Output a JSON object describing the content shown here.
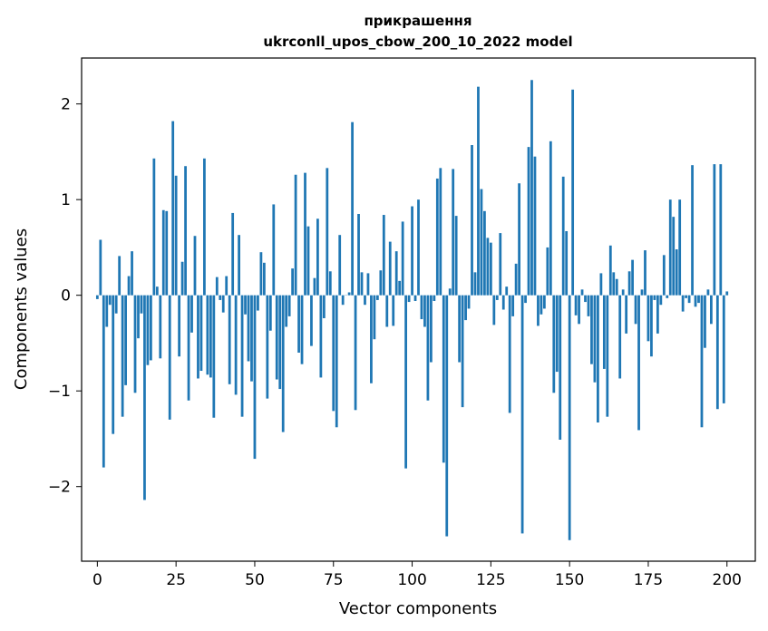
{
  "chart_data": {
    "type": "bar",
    "title": "прикрашення",
    "subtitle": "ukrconll_upos_cbow_200_10_2022 model",
    "xlabel": "Vector components",
    "ylabel": "Components values",
    "xlim": [
      -5,
      209
    ],
    "ylim": [
      -2.78,
      2.48
    ],
    "xticks": [
      0,
      25,
      50,
      75,
      100,
      125,
      150,
      175,
      200
    ],
    "yticks": [
      -2,
      -1,
      0,
      1,
      2
    ],
    "ytick_labels": [
      "−2",
      "−1",
      "0",
      "1",
      "2"
    ],
    "bar_color": "#1f77b4",
    "values": [
      -0.04,
      0.58,
      -1.8,
      -0.33,
      -0.1,
      -1.45,
      -0.19,
      0.41,
      -1.27,
      -0.94,
      0.2,
      0.46,
      -1.02,
      -0.45,
      -0.19,
      -2.14,
      -0.73,
      -0.68,
      1.43,
      0.09,
      -0.66,
      0.89,
      0.88,
      -1.3,
      1.82,
      1.25,
      -0.64,
      0.35,
      1.35,
      -1.1,
      -0.39,
      0.62,
      -0.87,
      -0.79,
      1.43,
      -0.83,
      -0.86,
      -1.28,
      0.19,
      -0.05,
      -0.18,
      0.2,
      -0.93,
      0.86,
      -1.04,
      0.63,
      -1.27,
      -0.2,
      -0.69,
      -0.9,
      -1.71,
      -0.16,
      0.45,
      0.34,
      -1.08,
      -0.37,
      0.95,
      -0.88,
      -0.98,
      -1.43,
      -0.33,
      -0.22,
      0.28,
      1.26,
      -0.6,
      -0.72,
      1.28,
      0.72,
      -0.53,
      0.18,
      0.8,
      -0.86,
      -0.24,
      1.33,
      0.25,
      -1.21,
      -1.38,
      0.63,
      -0.1,
      0.0,
      0.03,
      1.81,
      -1.2,
      0.85,
      0.24,
      -0.1,
      0.23,
      -0.92,
      -0.46,
      -0.05,
      0.26,
      0.84,
      -0.33,
      0.56,
      -0.32,
      0.46,
      0.15,
      0.77,
      -1.81,
      -0.07,
      0.93,
      -0.06,
      1.0,
      -0.25,
      -0.33,
      -1.1,
      -0.7,
      -0.06,
      1.22,
      1.33,
      -1.75,
      -2.52,
      0.07,
      1.32,
      0.83,
      -0.7,
      -1.17,
      -0.26,
      -0.14,
      1.57,
      0.24,
      2.18,
      1.11,
      0.88,
      0.6,
      0.55,
      -0.31,
      -0.05,
      0.65,
      -0.15,
      0.09,
      -1.23,
      -0.22,
      0.33,
      1.17,
      -2.49,
      -0.08,
      1.55,
      2.25,
      1.45,
      -0.32,
      -0.2,
      -0.14,
      0.5,
      1.61,
      -1.02,
      -0.8,
      -1.51,
      1.24,
      0.67,
      -2.56,
      2.15,
      -0.21,
      -0.3,
      0.06,
      -0.07,
      -0.22,
      -0.72,
      -0.91,
      -1.33,
      0.23,
      -0.77,
      -1.27,
      0.52,
      0.24,
      0.17,
      -0.87,
      0.06,
      -0.4,
      0.25,
      0.37,
      -0.3,
      -1.41,
      0.06,
      0.47,
      -0.48,
      -0.64,
      -0.05,
      -0.4,
      -0.1,
      0.42,
      -0.03,
      1.0,
      0.82,
      0.48,
      1.0,
      -0.17,
      -0.03,
      -0.08,
      1.36,
      -0.12,
      -0.08,
      -1.38,
      -0.55,
      0.06,
      -0.3,
      1.37,
      -1.19,
      1.37,
      -1.13,
      0.04
    ]
  }
}
